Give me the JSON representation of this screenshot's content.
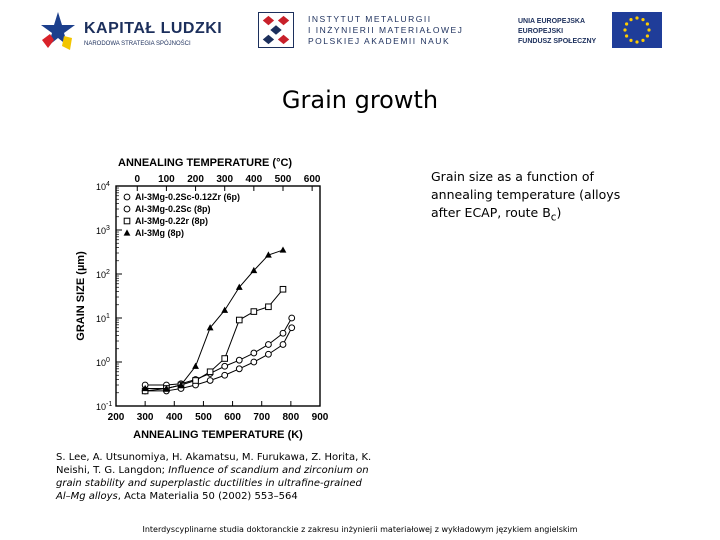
{
  "logos": {
    "kapital_ludzki": {
      "title": "KAPITAŁ LUDZKI",
      "subtitle": "NARODOWA STRATEGIA SPÓJNOŚCI"
    },
    "institute": {
      "line1": "INSTYTUT METALURGII",
      "line2": "I INŻYNIERII MATERIAŁOWEJ",
      "line3": "POLSKIEJ AKADEMII NAUK"
    },
    "eu": {
      "line1": "UNIA EUROPEJSKA",
      "line2": "EUROPEJSKI",
      "line3": "FUNDUSZ SPOŁECZNY",
      "flag_color": "#1f3d99",
      "star_color": "#ffcc00"
    }
  },
  "page_title": "Grain growth",
  "caption": {
    "text": "Grain size as a function of annealing temperature (alloys after ECAP, route B",
    "subscript": "c",
    "close": ")"
  },
  "reference": {
    "authors": "S. Lee, A. Utsunomiya, H. Akamatsu, M. Furukawa, Z. Horita, K. Neishi, T. G. Langdon;",
    "title": "Influence of scandium and zirconium on grain stability and superplastic ductilities in ultrafine-grained Al–Mg alloys",
    "journal": ", Acta Materialia 50 (2002) 553–564"
  },
  "footer": "Interdyscyplinarne studia doktoranckie z zakresu inżynierii materiałowej z wykładowym językiem angielskim",
  "chart_data": {
    "type": "line",
    "title": "",
    "xlabel": "ANNEALING TEMPERATURE (K)",
    "ylabel": "GRAIN SIZE (µm)",
    "top_axis_label": "ANNEALING TEMPERATURE (°C)",
    "xlim": [
      200,
      900
    ],
    "x_ticks": [
      "200",
      "300",
      "400",
      "500",
      "600",
      "700",
      "800",
      "900"
    ],
    "top_ticks": [
      "0",
      "100",
      "200",
      "300",
      "400",
      "500",
      "600"
    ],
    "y_scale": "log",
    "ylim": [
      0.1,
      10000
    ],
    "y_ticks": [
      "10",
      "10",
      "10",
      "10",
      "10",
      "10"
    ],
    "y_tick_exponents": [
      "-1",
      "0",
      "1",
      "2",
      "3",
      "4"
    ],
    "grid": false,
    "legend_position": "top-left",
    "series": [
      {
        "name": "Al-3Mg-0.2Sc-0.12Zr (6p)",
        "marker": "circle-open",
        "x": [
          300,
          373,
          423,
          473,
          523,
          573,
          623,
          673,
          723,
          773,
          803
        ],
        "y": [
          0.3,
          0.3,
          0.32,
          0.4,
          0.55,
          0.8,
          1.1,
          1.6,
          2.5,
          4.5,
          10
        ]
      },
      {
        "name": "Al-3Mg-0.2Sc (8p)",
        "marker": "circle-open",
        "x": [
          300,
          373,
          423,
          473,
          523,
          573,
          623,
          673,
          723,
          773,
          803
        ],
        "y": [
          0.22,
          0.22,
          0.25,
          0.3,
          0.38,
          0.5,
          0.7,
          1.0,
          1.5,
          2.5,
          6
        ]
      },
      {
        "name": "Al-3Mg-0.22r (8p)",
        "marker": "square-open",
        "x": [
          300,
          373,
          423,
          473,
          523,
          573,
          623,
          673,
          723,
          773
        ],
        "y": [
          0.22,
          0.25,
          0.3,
          0.38,
          0.6,
          1.2,
          9,
          14,
          18,
          45
        ]
      },
      {
        "name": "Al-3Mg (8p)",
        "marker": "triangle-filled",
        "x": [
          300,
          373,
          423,
          473,
          523,
          573,
          623,
          673,
          723,
          773
        ],
        "y": [
          0.25,
          0.25,
          0.3,
          0.8,
          6,
          15,
          50,
          120,
          270,
          350
        ]
      }
    ]
  }
}
